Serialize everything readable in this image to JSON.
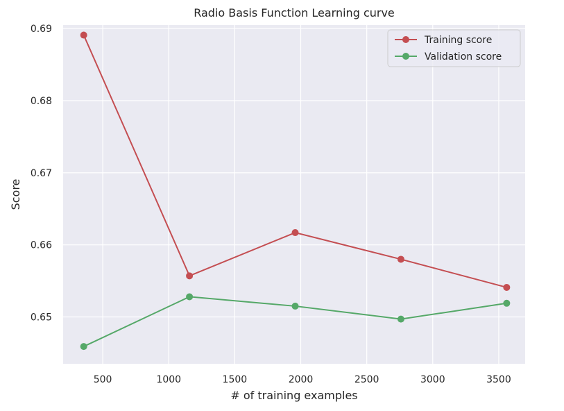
{
  "chart_data": {
    "type": "line",
    "title": "Radio Basis Function Learning curve",
    "xlabel": "# of training examples",
    "ylabel": "Score",
    "x": [
      356,
      1157,
      1958,
      2759,
      3560
    ],
    "xlim": [
      200,
      3700
    ],
    "ylim": [
      0.6435,
      0.6905
    ],
    "xticks": [
      500,
      1000,
      1500,
      2000,
      2500,
      3000,
      3500
    ],
    "xtick_labels": [
      "500",
      "1000",
      "1500",
      "2000",
      "2500",
      "3000",
      "3500"
    ],
    "yticks": [
      0.65,
      0.66,
      0.67,
      0.68,
      0.69
    ],
    "ytick_labels": [
      "0.65",
      "0.66",
      "0.67",
      "0.68",
      "0.69"
    ],
    "grid": true,
    "legend_position": "top-right",
    "series": [
      {
        "name": "Training score",
        "color": "#c44e52",
        "values": [
          0.6891,
          0.6557,
          0.6617,
          0.658,
          0.6541
        ]
      },
      {
        "name": "Validation score",
        "color": "#55a868",
        "values": [
          0.6459,
          0.6528,
          0.6515,
          0.6497,
          0.6519
        ]
      }
    ],
    "colors": {
      "plot_background": "#eaeaf2",
      "grid": "#ffffff"
    }
  }
}
